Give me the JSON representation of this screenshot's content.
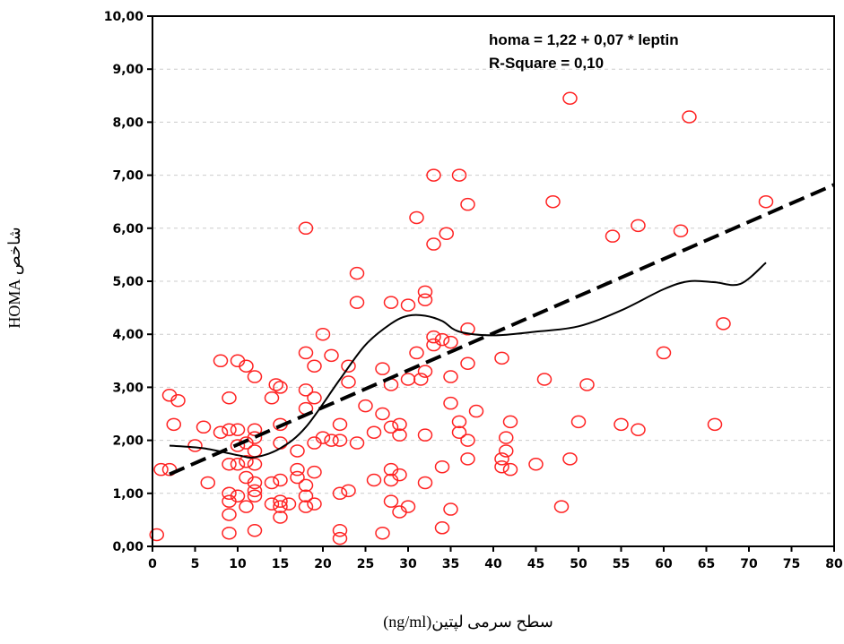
{
  "chart_data": {
    "type": "scatter",
    "xlabel": "سطح سرمی لپتین(ng/ml)",
    "ylabel": "شاخص HOMA",
    "xlim": [
      0,
      80
    ],
    "ylim": [
      0,
      10
    ],
    "x_ticks": [
      0,
      5,
      10,
      15,
      20,
      25,
      30,
      35,
      40,
      45,
      50,
      55,
      60,
      65,
      70,
      75,
      80
    ],
    "y_ticks": [
      0,
      1,
      2,
      3,
      4,
      5,
      6,
      7,
      8,
      9,
      10
    ],
    "y_tick_labels": [
      "0,00",
      "1,00",
      "2,00",
      "3,00",
      "4,00",
      "5,00",
      "6,00",
      "7,00",
      "8,00",
      "9,00",
      "10,00"
    ],
    "grid": "horizontal dashed",
    "annotations": [
      "homa = 1,22 + 0,07 * leptin",
      "R-Square = 0,10"
    ],
    "colors": {
      "points": "#ff2222",
      "regression": "#000000",
      "smooth": "#000000",
      "grid": "#cccccc"
    },
    "regression_line": {
      "intercept": 1.22,
      "slope": 0.07,
      "x_range": [
        2,
        80
      ],
      "style": "dashed"
    },
    "smooth_curve": {
      "style": "solid",
      "x": [
        2,
        6,
        10,
        12,
        15,
        18,
        22,
        25,
        28,
        30,
        32,
        34,
        36,
        40,
        45,
        50,
        55,
        60,
        63,
        66,
        69,
        72
      ],
      "y": [
        1.9,
        1.85,
        1.72,
        1.68,
        1.85,
        2.25,
        3.15,
        3.8,
        4.2,
        4.35,
        4.35,
        4.25,
        4.05,
        3.98,
        4.05,
        4.15,
        4.45,
        4.85,
        5.0,
        4.98,
        4.95,
        5.35
      ]
    },
    "points": [
      [
        0.5,
        0.22
      ],
      [
        1,
        1.45
      ],
      [
        2,
        1.45
      ],
      [
        2,
        2.85
      ],
      [
        2.5,
        2.3
      ],
      [
        3,
        2.75
      ],
      [
        5,
        1.9
      ],
      [
        6,
        2.25
      ],
      [
        6.5,
        1.2
      ],
      [
        8,
        3.5
      ],
      [
        8,
        2.15
      ],
      [
        9,
        0.25
      ],
      [
        9,
        0.6
      ],
      [
        9,
        0.85
      ],
      [
        9,
        1.0
      ],
      [
        9,
        1.55
      ],
      [
        9,
        2.2
      ],
      [
        9,
        2.8
      ],
      [
        10,
        0.95
      ],
      [
        10,
        1.55
      ],
      [
        10,
        1.9
      ],
      [
        10,
        2.2
      ],
      [
        10,
        3.5
      ],
      [
        11,
        0.75
      ],
      [
        11,
        1.3
      ],
      [
        11,
        1.6
      ],
      [
        11,
        1.95
      ],
      [
        11,
        3.4
      ],
      [
        12,
        0.3
      ],
      [
        12,
        0.95
      ],
      [
        12,
        1.05
      ],
      [
        12,
        1.2
      ],
      [
        12,
        1.55
      ],
      [
        12,
        1.8
      ],
      [
        12,
        2.05
      ],
      [
        12,
        2.2
      ],
      [
        12,
        3.2
      ],
      [
        14,
        0.8
      ],
      [
        14,
        1.2
      ],
      [
        14,
        2.8
      ],
      [
        14.5,
        3.05
      ],
      [
        15,
        0.55
      ],
      [
        15,
        0.75
      ],
      [
        15,
        0.85
      ],
      [
        15,
        1.25
      ],
      [
        15,
        1.95
      ],
      [
        15,
        2.3
      ],
      [
        15,
        3.0
      ],
      [
        16,
        0.8
      ],
      [
        17,
        1.45
      ],
      [
        17,
        1.3
      ],
      [
        17,
        1.8
      ],
      [
        18,
        0.75
      ],
      [
        18,
        0.95
      ],
      [
        18,
        1.15
      ],
      [
        18,
        2.6
      ],
      [
        18,
        2.95
      ],
      [
        18,
        3.65
      ],
      [
        18,
        6.0
      ],
      [
        19,
        0.8
      ],
      [
        19,
        1.4
      ],
      [
        19,
        1.95
      ],
      [
        19,
        2.8
      ],
      [
        19,
        3.4
      ],
      [
        20,
        2.05
      ],
      [
        20,
        4.0
      ],
      [
        21,
        3.6
      ],
      [
        21,
        2.0
      ],
      [
        22,
        0.15
      ],
      [
        22,
        0.3
      ],
      [
        22,
        1.0
      ],
      [
        22,
        2.0
      ],
      [
        22,
        2.3
      ],
      [
        23,
        1.05
      ],
      [
        23,
        3.1
      ],
      [
        23,
        3.4
      ],
      [
        24,
        1.95
      ],
      [
        24,
        4.6
      ],
      [
        24,
        5.15
      ],
      [
        25,
        2.65
      ],
      [
        26,
        1.25
      ],
      [
        26,
        2.15
      ],
      [
        27,
        0.25
      ],
      [
        27,
        2.5
      ],
      [
        27,
        3.35
      ],
      [
        28,
        0.85
      ],
      [
        28,
        1.45
      ],
      [
        28,
        1.25
      ],
      [
        28,
        2.25
      ],
      [
        28,
        3.05
      ],
      [
        28,
        4.6
      ],
      [
        29,
        0.65
      ],
      [
        29,
        2.1
      ],
      [
        29,
        2.3
      ],
      [
        29,
        1.35
      ],
      [
        30,
        0.75
      ],
      [
        30,
        3.15
      ],
      [
        30,
        4.55
      ],
      [
        31,
        3.65
      ],
      [
        31,
        6.2
      ],
      [
        31.5,
        3.15
      ],
      [
        32,
        1.2
      ],
      [
        32,
        2.1
      ],
      [
        32,
        3.3
      ],
      [
        32,
        4.65
      ],
      [
        32,
        4.8
      ],
      [
        33,
        3.8
      ],
      [
        33,
        3.95
      ],
      [
        33,
        5.7
      ],
      [
        33,
        7.0
      ],
      [
        34,
        0.35
      ],
      [
        34,
        1.5
      ],
      [
        34,
        3.9
      ],
      [
        34.5,
        5.9
      ],
      [
        35,
        0.7
      ],
      [
        35,
        2.7
      ],
      [
        35,
        3.2
      ],
      [
        35,
        3.85
      ],
      [
        36,
        2.15
      ],
      [
        36,
        2.35
      ],
      [
        36,
        7.0
      ],
      [
        37,
        1.65
      ],
      [
        37,
        2.0
      ],
      [
        37,
        3.45
      ],
      [
        37,
        4.1
      ],
      [
        37,
        6.45
      ],
      [
        38,
        2.55
      ],
      [
        41,
        1.5
      ],
      [
        41,
        1.65
      ],
      [
        41,
        3.55
      ],
      [
        41.5,
        2.05
      ],
      [
        42,
        1.45
      ],
      [
        42,
        2.35
      ],
      [
        41.5,
        1.8
      ],
      [
        45,
        1.55
      ],
      [
        46,
        3.15
      ],
      [
        47,
        6.5
      ],
      [
        48,
        0.75
      ],
      [
        49,
        1.65
      ],
      [
        49,
        8.45
      ],
      [
        50,
        2.35
      ],
      [
        51,
        3.05
      ],
      [
        54,
        5.85
      ],
      [
        55,
        2.3
      ],
      [
        57,
        2.2
      ],
      [
        57,
        6.05
      ],
      [
        60,
        3.65
      ],
      [
        62,
        5.95
      ],
      [
        63,
        8.1
      ],
      [
        66,
        2.3
      ],
      [
        67,
        4.2
      ],
      [
        72,
        6.5
      ]
    ]
  }
}
